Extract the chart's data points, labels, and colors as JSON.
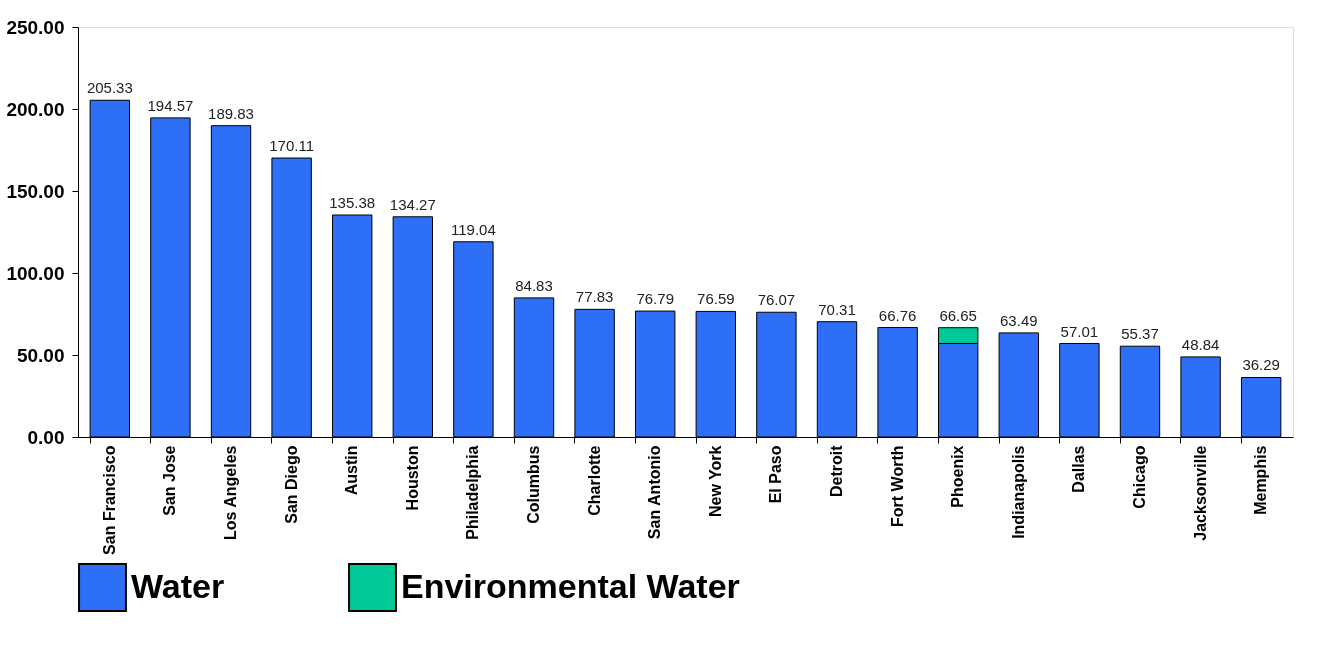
{
  "chart_data": {
    "type": "bar",
    "stacked": true,
    "categories": [
      "San Francisco",
      "San Jose",
      "Los Angeles",
      "San Diego",
      "Austin",
      "Houston",
      "Philadelphia",
      "Columbus",
      "Charlotte",
      "San Antonio",
      "New York",
      "El Paso",
      "Detroit",
      "Fort Worth",
      "Phoenix",
      "Indianapolis",
      "Dallas",
      "Chicago",
      "Jacksonville",
      "Memphis"
    ],
    "series": [
      {
        "name": "Water",
        "color": "#2d6ff7",
        "values": [
          205.33,
          194.57,
          189.83,
          170.11,
          135.38,
          134.27,
          119.04,
          84.83,
          77.83,
          76.79,
          76.59,
          76.07,
          70.31,
          66.76,
          57.0,
          63.49,
          57.01,
          55.37,
          48.84,
          36.29
        ]
      },
      {
        "name": "Environmental Water",
        "color": "#00c896",
        "values": [
          null,
          null,
          null,
          null,
          null,
          null,
          null,
          null,
          null,
          null,
          null,
          null,
          null,
          null,
          9.65,
          null,
          null,
          null,
          null,
          null
        ]
      }
    ],
    "totals": [
      "205.33",
      "194.57",
      "189.83",
      "170.11",
      "135.38",
      "134.27",
      "119.04",
      "84.83",
      "77.83",
      "76.79",
      "76.59",
      "76.07",
      "70.31",
      "66.76",
      "66.65",
      "63.49",
      "57.01",
      "55.37",
      "48.84",
      "36.29"
    ],
    "ylim": [
      0,
      250
    ],
    "yticks": [
      {
        "value": 0,
        "label": "0.00"
      },
      {
        "value": 50,
        "label": "50.00"
      },
      {
        "value": 100,
        "label": "100.00"
      },
      {
        "value": 150,
        "label": "150.00"
      },
      {
        "value": 200,
        "label": "200.00"
      },
      {
        "value": 250,
        "label": "250.00"
      }
    ],
    "grid": false,
    "legend": "bottom"
  }
}
